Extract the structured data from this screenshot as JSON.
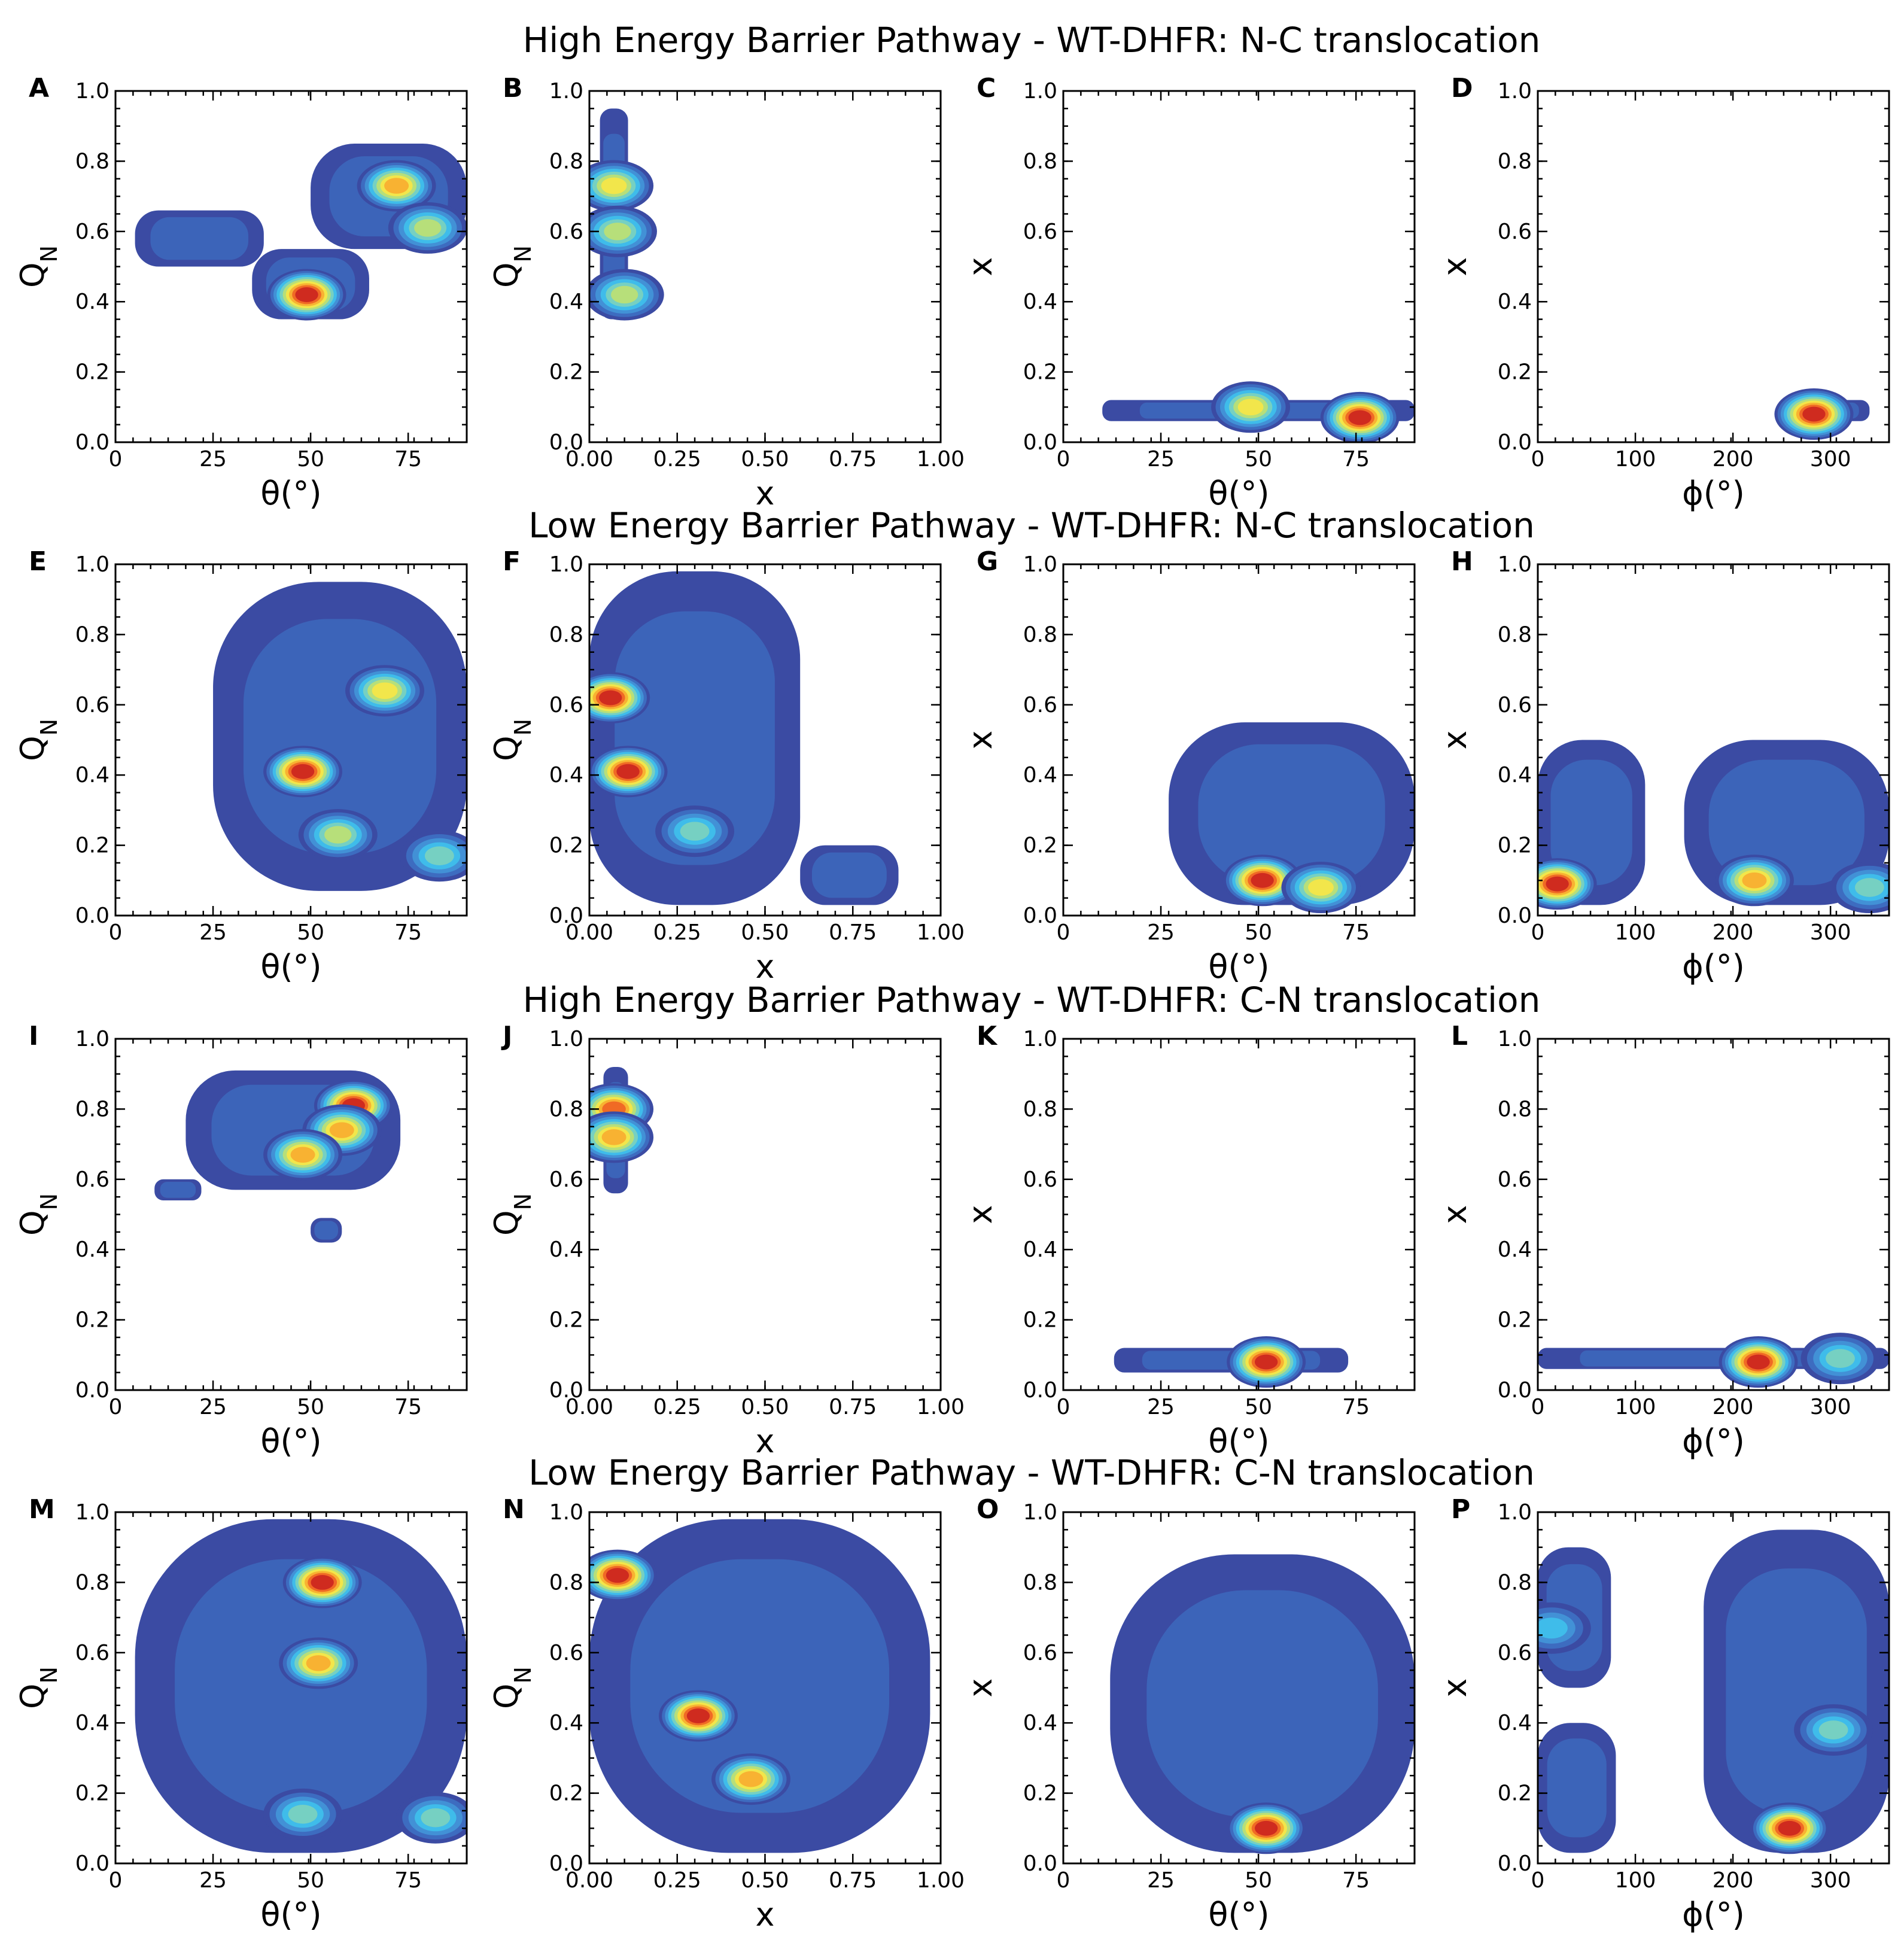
{
  "figure": {
    "row_titles": [
      "High Energy Barrier Pathway - WT-DHFR: N-C translocation",
      "Low Energy Barrier Pathway - WT-DHFR: N-C translocation",
      "High Energy Barrier Pathway - WT-DHFR: C-N translocation",
      "Low Energy Barrier Pathway - WT-DHFR: C-N translocation"
    ],
    "colormap": [
      "#3b4ba3",
      "#3d6cc0",
      "#4291d6",
      "#3fbcea",
      "#76d0c2",
      "#b7df7a",
      "#f2e64b",
      "#f8b232",
      "#f06a25",
      "#cf2b1f"
    ]
  },
  "chart_data": [
    {
      "panel": "A",
      "type": "contour",
      "title": "",
      "xlabel": "θ(°)",
      "ylabel": "QN",
      "xlim": [
        0,
        90
      ],
      "ylim": [
        0,
        1
      ],
      "xticks": [
        0,
        25,
        50,
        75
      ],
      "xtick_labels": [
        "0",
        "25",
        "50",
        "75"
      ],
      "regions": [
        {
          "x": [
            5,
            38
          ],
          "y": [
            0.5,
            0.66
          ]
        },
        {
          "x": [
            35,
            65
          ],
          "y": [
            0.35,
            0.55
          ]
        },
        {
          "x": [
            50,
            90
          ],
          "y": [
            0.55,
            0.85
          ]
        }
      ],
      "peaks": [
        {
          "x": 49,
          "y": 0.42,
          "level": 10
        },
        {
          "x": 72,
          "y": 0.73,
          "level": 8
        },
        {
          "x": 80,
          "y": 0.61,
          "level": 6
        }
      ]
    },
    {
      "panel": "B",
      "type": "contour",
      "title": "",
      "xlabel": "x",
      "ylabel": "QN",
      "xlim": [
        0,
        1
      ],
      "ylim": [
        0,
        1
      ],
      "xticks": [
        0,
        0.25,
        0.5,
        0.75,
        1
      ],
      "xtick_labels": [
        "0.00",
        "0.25",
        "0.50",
        "0.75",
        "1.00"
      ],
      "regions": [
        {
          "x": [
            0.03,
            0.11
          ],
          "y": [
            0.35,
            0.95
          ]
        }
      ],
      "peaks": [
        {
          "x": 0.07,
          "y": 0.73,
          "level": 7
        },
        {
          "x": 0.08,
          "y": 0.6,
          "level": 6
        },
        {
          "x": 0.1,
          "y": 0.42,
          "level": 6
        }
      ]
    },
    {
      "panel": "C",
      "type": "contour",
      "title": "",
      "xlabel": "θ(°)",
      "ylabel": "x",
      "xlim": [
        0,
        90
      ],
      "ylim": [
        0,
        1
      ],
      "xticks": [
        0,
        25,
        50,
        75
      ],
      "xtick_labels": [
        "0",
        "25",
        "50",
        "75"
      ],
      "regions": [
        {
          "x": [
            10,
            90
          ],
          "y": [
            0.06,
            0.12
          ]
        }
      ],
      "peaks": [
        {
          "x": 76,
          "y": 0.07,
          "level": 10
        },
        {
          "x": 48,
          "y": 0.1,
          "level": 7
        }
      ]
    },
    {
      "panel": "D",
      "type": "contour",
      "title": "",
      "xlabel": "ϕ(°)",
      "ylabel": "x",
      "xlim": [
        0,
        360
      ],
      "ylim": [
        0,
        1
      ],
      "xticks": [
        0,
        100,
        200,
        300
      ],
      "xtick_labels": [
        "0",
        "100",
        "200",
        "300"
      ],
      "regions": [
        {
          "x": [
            250,
            340
          ],
          "y": [
            0.06,
            0.12
          ]
        }
      ],
      "peaks": [
        {
          "x": 283,
          "y": 0.08,
          "level": 10
        }
      ]
    },
    {
      "panel": "E",
      "type": "contour",
      "title": "",
      "xlabel": "θ(°)",
      "ylabel": "QN",
      "xlim": [
        0,
        90
      ],
      "ylim": [
        0,
        1
      ],
      "xticks": [
        0,
        25,
        50,
        75
      ],
      "xtick_labels": [
        "0",
        "25",
        "50",
        "75"
      ],
      "regions": [
        {
          "x": [
            25,
            90
          ],
          "y": [
            0.07,
            0.95
          ]
        }
      ],
      "peaks": [
        {
          "x": 48,
          "y": 0.41,
          "level": 10
        },
        {
          "x": 69,
          "y": 0.64,
          "level": 7
        },
        {
          "x": 57,
          "y": 0.23,
          "level": 6
        },
        {
          "x": 83,
          "y": 0.17,
          "level": 5
        }
      ]
    },
    {
      "panel": "F",
      "type": "contour",
      "title": "",
      "xlabel": "x",
      "ylabel": "QN",
      "xlim": [
        0,
        1
      ],
      "ylim": [
        0,
        1
      ],
      "xticks": [
        0,
        0.25,
        0.5,
        0.75,
        1
      ],
      "xtick_labels": [
        "0.00",
        "0.25",
        "0.50",
        "0.75",
        "1.00"
      ],
      "regions": [
        {
          "x": [
            0,
            0.6
          ],
          "y": [
            0.03,
            0.98
          ]
        },
        {
          "x": [
            0.6,
            0.88
          ],
          "y": [
            0.03,
            0.2
          ]
        }
      ],
      "peaks": [
        {
          "x": 0.06,
          "y": 0.62,
          "level": 10
        },
        {
          "x": 0.11,
          "y": 0.41,
          "level": 10
        },
        {
          "x": 0.3,
          "y": 0.24,
          "level": 5
        }
      ]
    },
    {
      "panel": "G",
      "type": "contour",
      "title": "",
      "xlabel": "θ(°)",
      "ylabel": "x",
      "xlim": [
        0,
        90
      ],
      "ylim": [
        0,
        1
      ],
      "xticks": [
        0,
        25,
        50,
        75
      ],
      "xtick_labels": [
        "0",
        "25",
        "50",
        "75"
      ],
      "regions": [
        {
          "x": [
            27,
            90
          ],
          "y": [
            0.03,
            0.55
          ]
        }
      ],
      "peaks": [
        {
          "x": 51,
          "y": 0.1,
          "level": 10
        },
        {
          "x": 66,
          "y": 0.08,
          "level": 7
        }
      ]
    },
    {
      "panel": "H",
      "type": "contour",
      "title": "",
      "xlabel": "ϕ(°)",
      "ylabel": "x",
      "xlim": [
        0,
        360
      ],
      "ylim": [
        0,
        1
      ],
      "xticks": [
        0,
        100,
        200,
        300
      ],
      "xtick_labels": [
        "0",
        "100",
        "200",
        "300"
      ],
      "regions": [
        {
          "x": [
            0,
            110
          ],
          "y": [
            0.03,
            0.5
          ]
        },
        {
          "x": [
            150,
            360
          ],
          "y": [
            0.03,
            0.5
          ]
        }
      ],
      "peaks": [
        {
          "x": 20,
          "y": 0.09,
          "level": 10
        },
        {
          "x": 222,
          "y": 0.1,
          "level": 8
        },
        {
          "x": 340,
          "y": 0.08,
          "level": 5
        }
      ]
    },
    {
      "panel": "I",
      "type": "contour",
      "title": "",
      "xlabel": "θ(°)",
      "ylabel": "QN",
      "xlim": [
        0,
        90
      ],
      "ylim": [
        0,
        1
      ],
      "xticks": [
        0,
        25,
        50,
        75
      ],
      "xtick_labels": [
        "0",
        "25",
        "50",
        "75"
      ],
      "regions": [
        {
          "x": [
            18,
            73
          ],
          "y": [
            0.57,
            0.91
          ]
        },
        {
          "x": [
            10,
            22
          ],
          "y": [
            0.54,
            0.6
          ]
        },
        {
          "x": [
            50,
            58
          ],
          "y": [
            0.42,
            0.49
          ]
        }
      ],
      "peaks": [
        {
          "x": 61,
          "y": 0.81,
          "level": 10
        },
        {
          "x": 58,
          "y": 0.74,
          "level": 8
        },
        {
          "x": 48,
          "y": 0.67,
          "level": 8
        }
      ]
    },
    {
      "panel": "J",
      "type": "contour",
      "title": "",
      "xlabel": "x",
      "ylabel": "QN",
      "xlim": [
        0,
        1
      ],
      "ylim": [
        0,
        1
      ],
      "xticks": [
        0,
        0.25,
        0.5,
        0.75,
        1
      ],
      "xtick_labels": [
        "0.00",
        "0.25",
        "0.50",
        "0.75",
        "1.00"
      ],
      "regions": [
        {
          "x": [
            0.04,
            0.11
          ],
          "y": [
            0.56,
            0.92
          ]
        }
      ],
      "peaks": [
        {
          "x": 0.07,
          "y": 0.8,
          "level": 9
        },
        {
          "x": 0.07,
          "y": 0.72,
          "level": 8
        }
      ]
    },
    {
      "panel": "K",
      "type": "contour",
      "title": "",
      "xlabel": "θ(°)",
      "ylabel": "x",
      "xlim": [
        0,
        90
      ],
      "ylim": [
        0,
        1
      ],
      "xticks": [
        0,
        25,
        50,
        75
      ],
      "xtick_labels": [
        "0",
        "25",
        "50",
        "75"
      ],
      "regions": [
        {
          "x": [
            13,
            73
          ],
          "y": [
            0.05,
            0.12
          ]
        }
      ],
      "peaks": [
        {
          "x": 52,
          "y": 0.08,
          "level": 10
        }
      ]
    },
    {
      "panel": "L",
      "type": "contour",
      "title": "",
      "xlabel": "ϕ(°)",
      "ylabel": "x",
      "xlim": [
        0,
        360
      ],
      "ylim": [
        0,
        1
      ],
      "xticks": [
        0,
        100,
        200,
        300
      ],
      "xtick_labels": [
        "0",
        "100",
        "200",
        "300"
      ],
      "regions": [
        {
          "x": [
            0,
            360
          ],
          "y": [
            0.06,
            0.12
          ]
        }
      ],
      "peaks": [
        {
          "x": 226,
          "y": 0.08,
          "level": 10
        },
        {
          "x": 310,
          "y": 0.09,
          "level": 5
        }
      ]
    },
    {
      "panel": "M",
      "type": "contour",
      "title": "",
      "xlabel": "θ(°)",
      "ylabel": "QN",
      "xlim": [
        0,
        90
      ],
      "ylim": [
        0,
        1
      ],
      "xticks": [
        0,
        25,
        50,
        75
      ],
      "xtick_labels": [
        "0",
        "25",
        "50",
        "75"
      ],
      "regions": [
        {
          "x": [
            5,
            90
          ],
          "y": [
            0.03,
            0.98
          ]
        }
      ],
      "peaks": [
        {
          "x": 53,
          "y": 0.8,
          "level": 10
        },
        {
          "x": 52,
          "y": 0.57,
          "level": 8
        },
        {
          "x": 48,
          "y": 0.14,
          "level": 5
        },
        {
          "x": 82,
          "y": 0.13,
          "level": 5
        }
      ]
    },
    {
      "panel": "N",
      "type": "contour",
      "title": "",
      "xlabel": "x",
      "ylabel": "QN",
      "xlim": [
        0,
        1
      ],
      "ylim": [
        0,
        1
      ],
      "xticks": [
        0,
        0.25,
        0.5,
        0.75,
        1
      ],
      "xtick_labels": [
        "0.00",
        "0.25",
        "0.50",
        "0.75",
        "1.00"
      ],
      "regions": [
        {
          "x": [
            0,
            0.97
          ],
          "y": [
            0.03,
            0.98
          ]
        }
      ],
      "peaks": [
        {
          "x": 0.08,
          "y": 0.82,
          "level": 10
        },
        {
          "x": 0.31,
          "y": 0.42,
          "level": 10
        },
        {
          "x": 0.46,
          "y": 0.24,
          "level": 8
        }
      ]
    },
    {
      "panel": "O",
      "type": "contour",
      "title": "",
      "xlabel": "θ(°)",
      "ylabel": "x",
      "xlim": [
        0,
        90
      ],
      "ylim": [
        0,
        1
      ],
      "xticks": [
        0,
        25,
        50,
        75
      ],
      "xtick_labels": [
        "0",
        "25",
        "50",
        "75"
      ],
      "regions": [
        {
          "x": [
            12,
            90
          ],
          "y": [
            0.03,
            0.88
          ]
        }
      ],
      "peaks": [
        {
          "x": 52,
          "y": 0.1,
          "level": 10
        }
      ]
    },
    {
      "panel": "P",
      "type": "contour",
      "title": "",
      "xlabel": "ϕ(°)",
      "ylabel": "x",
      "xlim": [
        0,
        360
      ],
      "ylim": [
        0,
        1
      ],
      "xticks": [
        0,
        100,
        200,
        300
      ],
      "xtick_labels": [
        "0",
        "100",
        "200",
        "300"
      ],
      "regions": [
        {
          "x": [
            0,
            75
          ],
          "y": [
            0.5,
            0.9
          ]
        },
        {
          "x": [
            0,
            80
          ],
          "y": [
            0.03,
            0.4
          ]
        },
        {
          "x": [
            170,
            360
          ],
          "y": [
            0.03,
            0.95
          ]
        }
      ],
      "peaks": [
        {
          "x": 258,
          "y": 0.1,
          "level": 10
        },
        {
          "x": 14,
          "y": 0.67,
          "level": 4
        },
        {
          "x": 303,
          "y": 0.38,
          "level": 5
        }
      ]
    }
  ]
}
